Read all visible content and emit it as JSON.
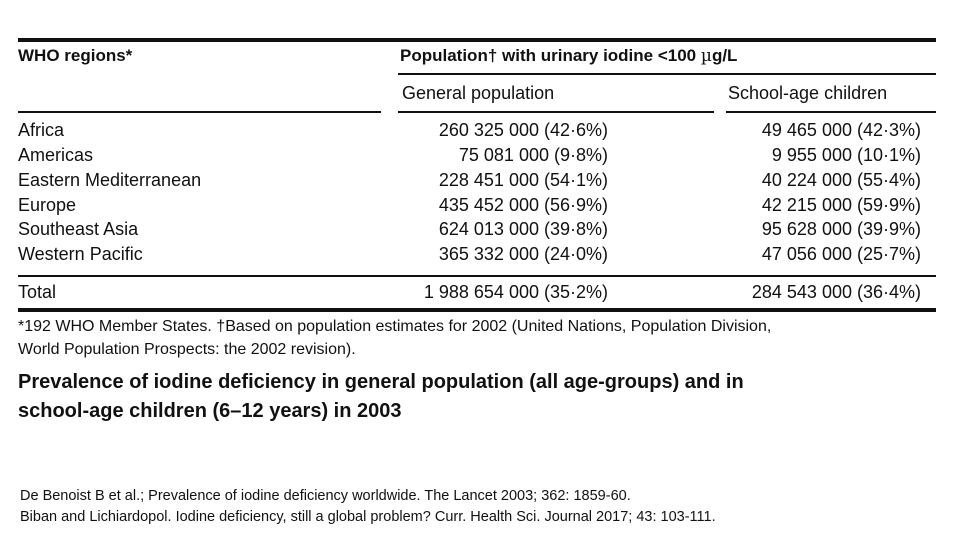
{
  "table": {
    "header": {
      "region_col": "WHO regions*",
      "group_header_prefix": "Population† with urinary iodine <100 ",
      "group_header_unit_mu": "µ",
      "group_header_unit_rest": "g/L",
      "sub_general": "General population",
      "sub_school": "School-age children"
    },
    "rows": [
      {
        "region": "Africa",
        "general": "260 325 000 (42·6%)",
        "school": "49 465 000 (42·3%)"
      },
      {
        "region": "Americas",
        "general": "75 081 000 (9·8%)",
        "school": "9 955 000 (10·1%)"
      },
      {
        "region": "Eastern Mediterranean",
        "general": "228 451 000 (54·1%)",
        "school": "40 224 000 (55·4%)"
      },
      {
        "region": "Europe",
        "general": "435 452 000 (56·9%)",
        "school": "42 215 000 (59·9%)"
      },
      {
        "region": "Southeast Asia",
        "general": "624 013 000 (39·8%)",
        "school": "95 628 000 (39·9%)"
      },
      {
        "region": "Western Pacific",
        "general": "365 332 000 (24·0%)",
        "school": "47 056 000 (25·7%)"
      }
    ],
    "total": {
      "region": "Total",
      "general": "1 988 654 000 (35·2%)",
      "school": "284 543 000 (36·4%)"
    },
    "footnote_line1": "*192 WHO Member States. †Based on population estimates for 2002 (United Nations, Population Division,",
    "footnote_line2": "World Population Prospects: the 2002 revision)."
  },
  "caption": {
    "line1": "Prevalence of iodine deficiency in general population (all age-groups) and in",
    "line2": "school-age children (6–12 years) in 2003"
  },
  "references": {
    "line1": "De Benoist B et al.; Prevalence of iodine deficiency worldwide. The Lancet 2003; 362: 1859-60.",
    "line2": "Biban and Lichiardopol. Iodine deficiency, still a global problem? Curr. Health Sci. Journal 2017; 43: 103-111."
  }
}
